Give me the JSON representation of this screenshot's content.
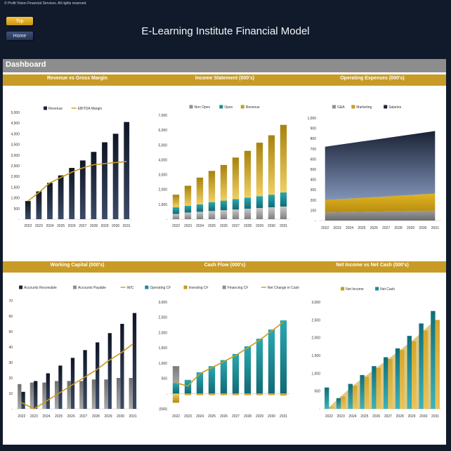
{
  "header": {
    "copyright": "© Profit Vision Financial Services. All rights reserved.",
    "top_label": "Top",
    "home_label": "Home",
    "title": "E-Learning Institute Financial Model",
    "dashboard_label": "Dashboard"
  },
  "colors": {
    "navy": "#1c2538",
    "gold": "#c99b1c",
    "teal": "#1a8c97",
    "gray": "#8f8f8f",
    "band": "#c89b26"
  },
  "chart_data": [
    {
      "id": "revenue",
      "type": "bar",
      "title": "Revenue vs Gross Margin",
      "categories": [
        "2022",
        "2023",
        "2024",
        "2025",
        "2026",
        "2027",
        "2028",
        "2029",
        "2030",
        "2031"
      ],
      "ylim": [
        0,
        5000
      ],
      "yticks": [
        "-",
        "500",
        "1,000",
        "1,500",
        "2,000",
        "2,500",
        "3,000",
        "3,500",
        "4,000",
        "4,500",
        "5,000"
      ],
      "legend": [
        "Revenue",
        "EBITDA Margin"
      ],
      "series": [
        {
          "name": "Revenue",
          "kind": "bar",
          "values": [
            850,
            1300,
            1700,
            2050,
            2400,
            2750,
            3150,
            3600,
            4000,
            4550
          ]
        },
        {
          "name": "EBITDA Margin",
          "kind": "line",
          "values": [
            850,
            1250,
            1700,
            1950,
            2200,
            2400,
            2550,
            2600,
            2650,
            2700
          ]
        }
      ]
    },
    {
      "id": "income",
      "type": "bar",
      "title": "Income Statement (000's)",
      "categories": [
        "2022",
        "2023",
        "2024",
        "2025",
        "2026",
        "2027",
        "2028",
        "2029",
        "2030",
        "2031"
      ],
      "ylim": [
        0,
        7000
      ],
      "yticks": [
        "-",
        "1,000",
        "2,000",
        "3,000",
        "4,000",
        "5,000",
        "6,000",
        "7,000"
      ],
      "legend": [
        "Non Opex",
        "Opex",
        "Revenue"
      ],
      "series": [
        {
          "name": "Non Opex",
          "values": [
            350,
            450,
            500,
            550,
            600,
            650,
            700,
            750,
            800,
            850
          ]
        },
        {
          "name": "Opex",
          "values": [
            450,
            450,
            500,
            600,
            650,
            700,
            750,
            800,
            850,
            950
          ]
        },
        {
          "name": "Revenue",
          "values": [
            850,
            1350,
            1800,
            2100,
            2400,
            2800,
            3150,
            3600,
            4000,
            4550
          ]
        }
      ]
    },
    {
      "id": "opex",
      "type": "area",
      "title": "Operating Expenses (000's)",
      "categories": [
        "2022",
        "2023",
        "2024",
        "2025",
        "2026",
        "2027",
        "2028",
        "2029",
        "2030",
        "2031"
      ],
      "ylim": [
        0,
        1000
      ],
      "yticks": [
        "-",
        "100",
        "200",
        "300",
        "400",
        "500",
        "600",
        "700",
        "800",
        "900",
        "1,000"
      ],
      "legend": [
        "G&A",
        "Marketing",
        "Salaries"
      ],
      "series": [
        {
          "name": "G&A",
          "values": [
            80,
            82,
            84,
            86,
            88,
            90,
            92,
            94,
            96,
            98
          ]
        },
        {
          "name": "Marketing",
          "values": [
            120,
            125,
            130,
            135,
            140,
            145,
            150,
            155,
            160,
            165
          ]
        },
        {
          "name": "Salaries",
          "values": [
            520,
            530,
            540,
            550,
            560,
            570,
            580,
            590,
            600,
            610
          ]
        }
      ]
    },
    {
      "id": "wc",
      "type": "bar",
      "title": "Working Capital (000's)",
      "categories": [
        "2022",
        "2023",
        "2024",
        "2025",
        "2026",
        "2027",
        "2028",
        "2029",
        "2030",
        "2031"
      ],
      "ylim": [
        0,
        70
      ],
      "yticks": [
        "-",
        "10",
        "20",
        "30",
        "40",
        "50",
        "60",
        "70"
      ],
      "legend": [
        "Accounts Receivable",
        "Accounts Payable",
        "W/C"
      ],
      "series": [
        {
          "name": "Accounts Receivable",
          "kind": "bar",
          "values": [
            11,
            18,
            23,
            28,
            33,
            38,
            43,
            49,
            55,
            62
          ]
        },
        {
          "name": "Accounts Payable",
          "kind": "bar",
          "values": [
            16,
            17,
            17,
            18,
            18,
            18,
            19,
            19,
            20,
            20
          ]
        },
        {
          "name": "W/C",
          "kind": "line",
          "values": [
            4,
            0,
            5,
            10,
            15,
            20,
            25,
            31,
            36,
            42
          ]
        }
      ]
    },
    {
      "id": "cf",
      "type": "bar",
      "title": "Cash Flow (000's)",
      "categories": [
        "2022",
        "2023",
        "2024",
        "2025",
        "2026",
        "2027",
        "2028",
        "2029",
        "2030",
        "2031"
      ],
      "ylim": [
        -500,
        3000
      ],
      "yticks": [
        "(500)",
        "-",
        "500",
        "1,000",
        "1,500",
        "2,000",
        "2,500",
        "3,000"
      ],
      "legend": [
        "Operating CF",
        "Investing CF",
        "Financing CF",
        "Net Change in Cash"
      ],
      "series": [
        {
          "name": "Operating CF",
          "kind": "bar",
          "values": [
            350,
            450,
            700,
            900,
            1100,
            1300,
            1550,
            1800,
            2100,
            2400
          ]
        },
        {
          "name": "Investing CF",
          "kind": "bar",
          "values": [
            -300,
            -50,
            -50,
            -50,
            -50,
            -50,
            -50,
            -50,
            -50,
            -60
          ]
        },
        {
          "name": "Financing CF",
          "kind": "bar",
          "values": [
            550,
            0,
            0,
            0,
            0,
            0,
            0,
            0,
            0,
            0
          ]
        },
        {
          "name": "Net Change in Cash",
          "kind": "line",
          "values": [
            350,
            250,
            650,
            850,
            1050,
            1250,
            1500,
            1750,
            2050,
            2350
          ]
        }
      ]
    },
    {
      "id": "ni",
      "type": "bar",
      "title": "Net Income vs Net Cash (000's)",
      "categories": [
        "2022",
        "2023",
        "2024",
        "2025",
        "2026",
        "2027",
        "2028",
        "2029",
        "2030",
        "2031"
      ],
      "ylim": [
        0,
        3000
      ],
      "yticks": [
        "-",
        "500",
        "1,000",
        "1,500",
        "2,000",
        "2,500",
        "3,000"
      ],
      "legend": [
        "Net Income",
        "Net Cash"
      ],
      "series": [
        {
          "name": "Net Income",
          "values": [
            50,
            350,
            650,
            900,
            1150,
            1400,
            1650,
            1900,
            2200,
            2500
          ]
        },
        {
          "name": "Net Cash",
          "values": [
            600,
            300,
            700,
            950,
            1200,
            1450,
            1700,
            2050,
            2400,
            2750
          ]
        }
      ]
    }
  ]
}
